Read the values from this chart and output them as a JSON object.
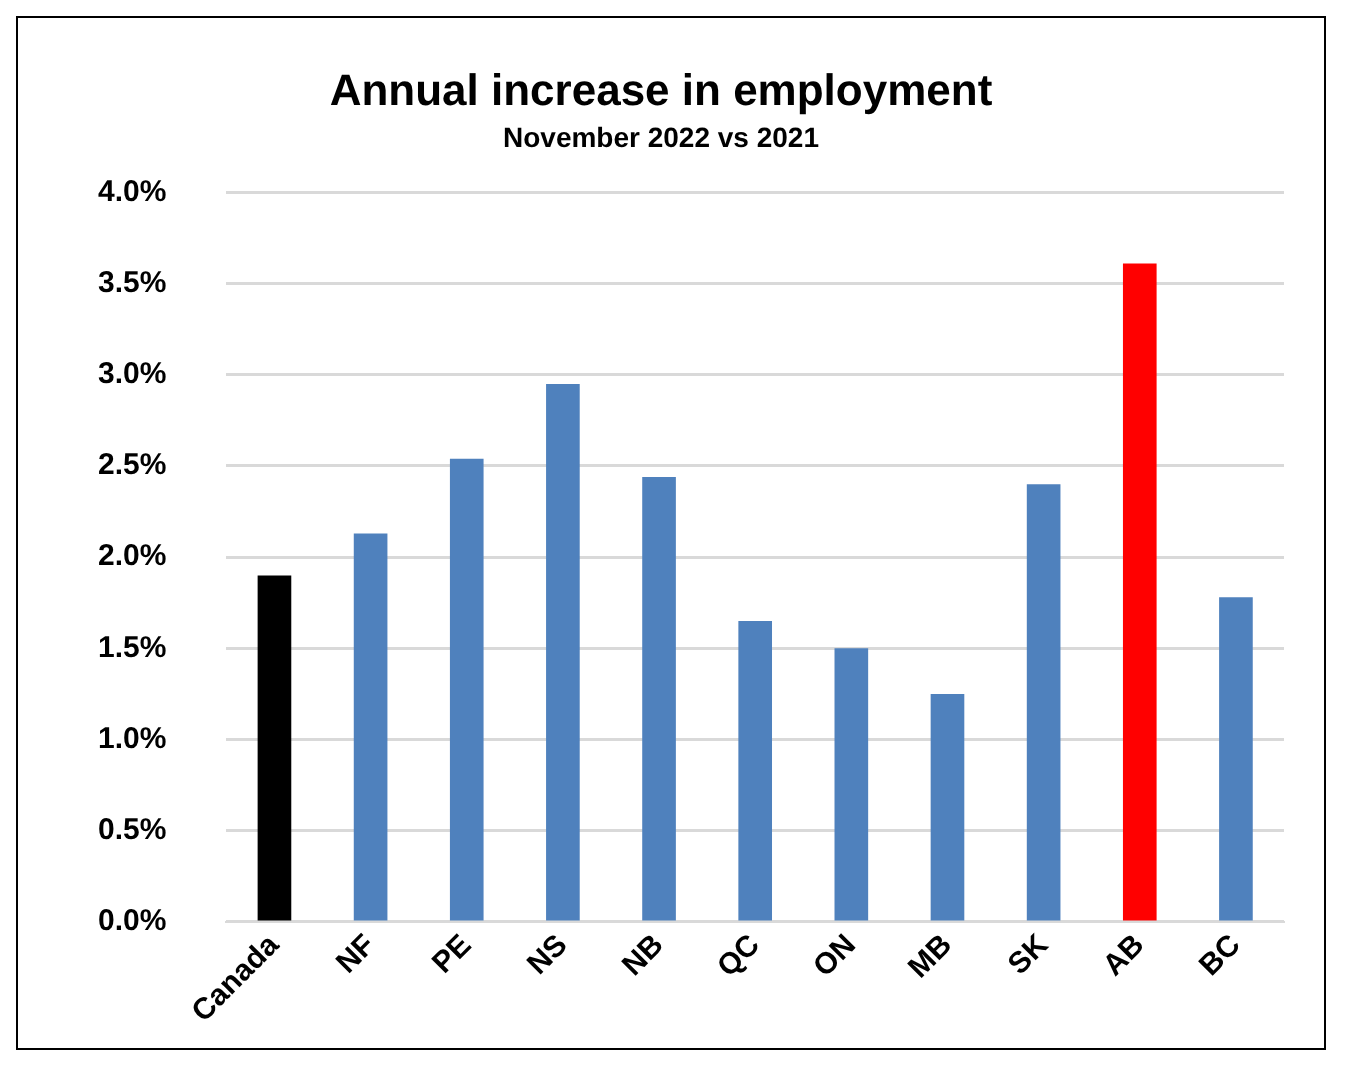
{
  "chart_data": {
    "type": "bar",
    "title": "Annual increase in employment",
    "subtitle": "November 2022 vs 2021",
    "categories": [
      "Canada",
      "NF",
      "PE",
      "NS",
      "NB",
      "QC",
      "ON",
      "MB",
      "SK",
      "AB",
      "BC"
    ],
    "values": [
      1.9,
      2.13,
      2.54,
      2.95,
      2.44,
      1.65,
      1.5,
      1.25,
      2.4,
      3.61,
      1.78
    ],
    "colors": [
      "#000000",
      "#4f81bd",
      "#4f81bd",
      "#4f81bd",
      "#4f81bd",
      "#4f81bd",
      "#4f81bd",
      "#4f81bd",
      "#4f81bd",
      "#ff0000",
      "#4f81bd"
    ],
    "ylim": [
      0,
      4
    ],
    "yticks": [
      {
        "value": 0,
        "label": "0.0%"
      },
      {
        "value": 0.5,
        "label": "0.5%"
      },
      {
        "value": 1,
        "label": "1.0%"
      },
      {
        "value": 1.5,
        "label": "1.5%"
      },
      {
        "value": 2,
        "label": "2.0%"
      },
      {
        "value": 2.5,
        "label": "2.5%"
      },
      {
        "value": 3,
        "label": "3.0%"
      },
      {
        "value": 3.5,
        "label": "3.5%"
      },
      {
        "value": 4,
        "label": "4.0%"
      }
    ],
    "grid": "y",
    "legend": false
  }
}
